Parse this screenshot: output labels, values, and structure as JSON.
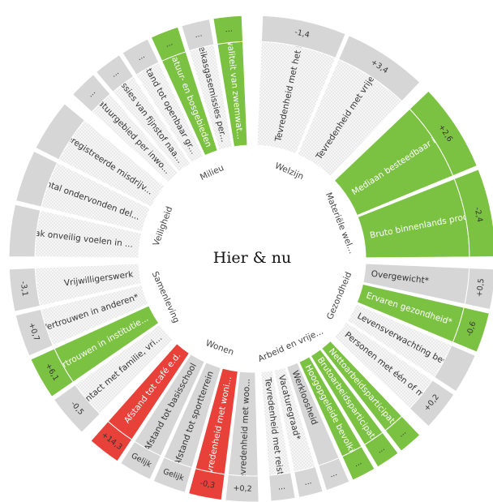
{
  "chart_data": {
    "type": "radial-dashboard",
    "title": "Hier & nu",
    "colors": {
      "better": "#7cc242",
      "worse": "#e8413a",
      "neutral": "#d6d6d6",
      "nodata": "#ececec",
      "label_text": "#333333"
    },
    "dimensions": [
      {
        "name": "Welzijn",
        "indicators": [
          {
            "label": "Tevredenheid met het l...",
            "status": "none",
            "change": "-1,4"
          },
          {
            "label": "Tevredenheid met vrije t...",
            "status": "none",
            "change": "+3,4"
          }
        ]
      },
      {
        "name": "Materiële wel...",
        "indicators": [
          {
            "label": "Mediaan besteedbaar i...",
            "status": "better",
            "change": "+2,6"
          },
          {
            "label": "Bruto binnenlands prod...",
            "status": "better",
            "change": "-2,4"
          }
        ]
      },
      {
        "name": "Gezondheid",
        "indicators": [
          {
            "label": "Overgewicht*",
            "status": "neutral",
            "change": "+0,5"
          },
          {
            "label": "Ervaren gezondheid*",
            "status": "better",
            "change": "-0,6"
          },
          {
            "label": "Levensverwachting bev...",
            "status": "none",
            "change": ""
          },
          {
            "label": "Personen met één of m...",
            "status": "none",
            "change": "+0,2"
          }
        ]
      },
      {
        "name": "Arbeid en vrije...",
        "indicators": [
          {
            "label": "Nettoarbeidsparticipatie",
            "status": "better",
            "change": "..."
          },
          {
            "label": "Brutoarbeidsparticipatie",
            "status": "better",
            "change": "..."
          },
          {
            "label": "Hoogopgeleide bevolki...",
            "status": "better",
            "change": "..."
          },
          {
            "label": "Werkloosheid",
            "status": "neutral",
            "change": "..."
          },
          {
            "label": "Vacaturegraad*",
            "status": "none",
            "change": "..."
          },
          {
            "label": "Tevredenheid met reist...",
            "status": "none",
            "change": "..."
          }
        ]
      },
      {
        "name": "Wonen",
        "indicators": [
          {
            "label": "Tevredenheid met woo...",
            "status": "neutral",
            "change": "+0,2"
          },
          {
            "label": "Tevredenheid met woni...",
            "status": "worse",
            "change": "-0,3"
          },
          {
            "label": "Afstand tot sportterrein",
            "status": "neutral",
            "change": "Gelijk"
          },
          {
            "label": "Afstand tot basisschool",
            "status": "neutral",
            "change": "Gelijk"
          },
          {
            "label": "Afstand tot café e.d.",
            "status": "worse",
            "change": "+14,3"
          }
        ]
      },
      {
        "name": "Samenleving",
        "indicators": [
          {
            "label": "Contact met familie, vri...",
            "status": "none",
            "change": "-0,5"
          },
          {
            "label": "Vertrouwen in institutie...",
            "status": "better",
            "change": "+6,1"
          },
          {
            "label": "Vertrouwen in anderen*",
            "status": "none",
            "change": "+0,7"
          },
          {
            "label": "Vrijwilligerswerk",
            "status": "none",
            "change": "-3,1"
          }
        ]
      },
      {
        "name": "Veiligheid",
        "indicators": [
          {
            "label": "Vaak onveilig voelen in ...",
            "status": "none",
            "change": ""
          },
          {
            "label": "Aantal ondervonden del...",
            "status": "none",
            "change": ""
          },
          {
            "label": "Geregistreerde misdrijv...",
            "status": "none",
            "change": ""
          }
        ]
      },
      {
        "name": "Milieu",
        "indicators": [
          {
            "label": "Natuurgebied per inwo...",
            "status": "none",
            "change": "..."
          },
          {
            "label": "Emissies van fijnstof naa...",
            "status": "none",
            "change": "..."
          },
          {
            "label": "Afstand tot openbaar gr...",
            "status": "none",
            "change": "..."
          },
          {
            "label": "Natuur- en bosgebieden",
            "status": "better",
            "change": "..."
          },
          {
            "label": "Broeikasgasemissies per...",
            "status": "none",
            "change": "..."
          },
          {
            "label": "Kwaliteit van zwemwat...",
            "status": "better",
            "change": "..."
          }
        ]
      }
    ]
  }
}
